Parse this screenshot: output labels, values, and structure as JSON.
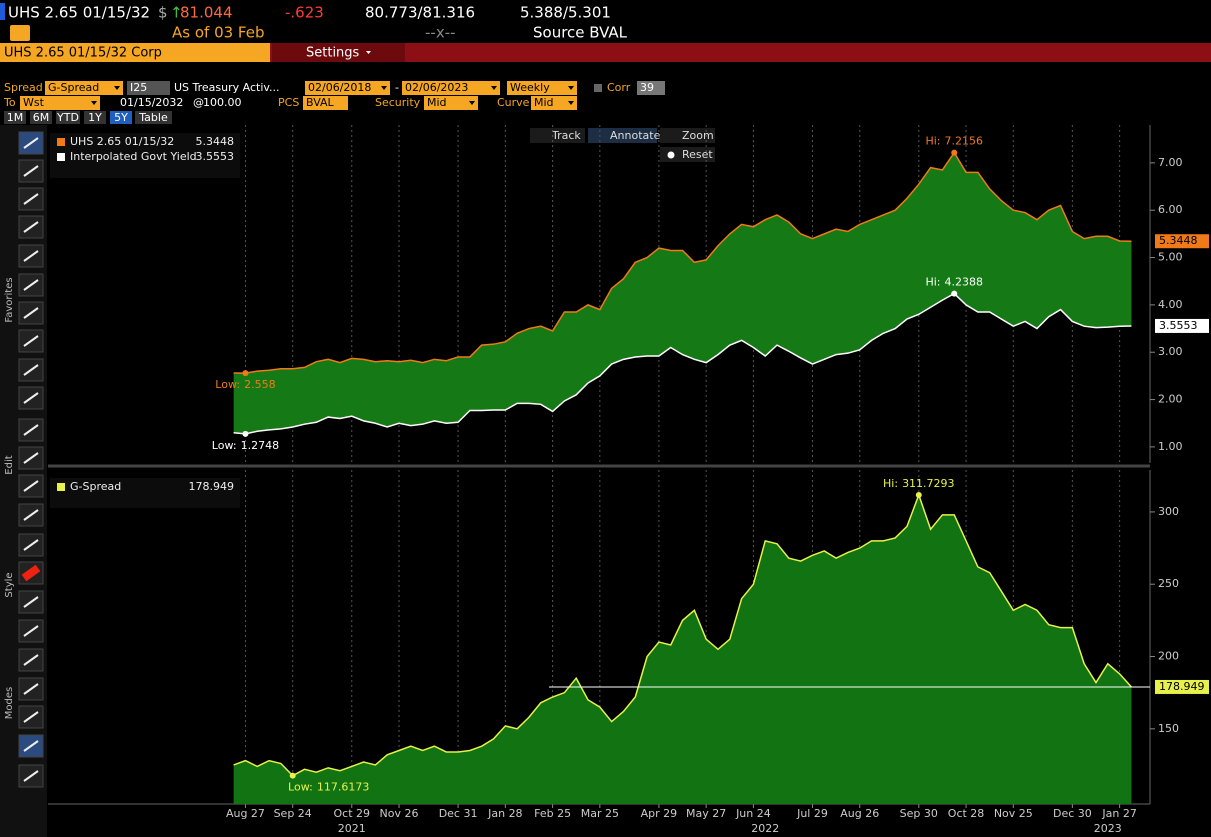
{
  "header": {
    "ticker": "UHS 2.65 01/15/32",
    "currency": "$",
    "arrow": "↑",
    "price": "81.044",
    "change": "-.623",
    "bid_ask": "80.773/81.316",
    "yields": "5.388/5.301",
    "as_of": "As of 03 Feb",
    "spacer": "--x--",
    "source": "Source BVAL",
    "security": "UHS 2.65 01/15/32 Corp",
    "settings": "Settings"
  },
  "controls": {
    "spread_label": "Spread",
    "spread": "G-Spread",
    "curve_id": "I25",
    "curve_name": "US Treasury Activ...",
    "start": "02/06/2018",
    "dash": "-",
    "end": "02/06/2023",
    "period": "Weekly",
    "corr_label": "Corr",
    "corr": "39",
    "to_label": "To",
    "to": "Wst",
    "date": "01/15/2032",
    "at": "@",
    "price": "100.00",
    "pcs_label": "PCS",
    "pcs": "BVAL",
    "security_label": "Security",
    "security": "Mid",
    "curve_label": "Curve",
    "curve": "Mid"
  },
  "buttons": [
    "1M",
    "6M",
    "YTD",
    "1Y",
    "5Y",
    "Table"
  ],
  "chart_tools": [
    "Track",
    "Annotate",
    "Zoom",
    "Reset"
  ],
  "side_labels": [
    "Favorites",
    "Edit",
    "Style",
    "Modes"
  ],
  "chart_data": {
    "type": "line",
    "legend": "top-left",
    "grid": true,
    "hi_label": "Hi:",
    "low_label": "Low:",
    "x": [
      "2021-08-20",
      "2021-08-27",
      "2021-09-03",
      "2021-09-10",
      "2021-09-17",
      "2021-09-24",
      "2021-10-01",
      "2021-10-08",
      "2021-10-15",
      "2021-10-22",
      "2021-10-29",
      "2021-11-05",
      "2021-11-12",
      "2021-11-19",
      "2021-11-26",
      "2021-12-03",
      "2021-12-10",
      "2021-12-17",
      "2021-12-24",
      "2021-12-31",
      "2022-01-07",
      "2022-01-14",
      "2022-01-21",
      "2022-01-28",
      "2022-02-04",
      "2022-02-11",
      "2022-02-18",
      "2022-02-25",
      "2022-03-04",
      "2022-03-11",
      "2022-03-18",
      "2022-03-25",
      "2022-04-01",
      "2022-04-08",
      "2022-04-15",
      "2022-04-22",
      "2022-04-29",
      "2022-05-06",
      "2022-05-13",
      "2022-05-20",
      "2022-05-27",
      "2022-06-03",
      "2022-06-10",
      "2022-06-17",
      "2022-06-24",
      "2022-07-01",
      "2022-07-08",
      "2022-07-15",
      "2022-07-22",
      "2022-07-29",
      "2022-08-05",
      "2022-08-12",
      "2022-08-19",
      "2022-08-26",
      "2022-09-02",
      "2022-09-09",
      "2022-09-16",
      "2022-09-23",
      "2022-09-30",
      "2022-10-07",
      "2022-10-14",
      "2022-10-21",
      "2022-10-28",
      "2022-11-04",
      "2022-11-11",
      "2022-11-18",
      "2022-11-25",
      "2022-12-02",
      "2022-12-09",
      "2022-12-16",
      "2022-12-23",
      "2022-12-30",
      "2023-01-06",
      "2023-01-13",
      "2023-01-20",
      "2023-01-27",
      "2023-02-03"
    ],
    "xlim": [
      "2021-05-02",
      "2023-02-14"
    ],
    "xticks": [
      {
        "value": "2021-08-27",
        "label": "Aug 27"
      },
      {
        "value": "2021-09-24",
        "label": "Sep 24"
      },
      {
        "value": "2021-10-29",
        "label": "Oct 29"
      },
      {
        "value": "2021-11-26",
        "label": "Nov 26"
      },
      {
        "value": "2021-12-31",
        "label": "Dec 31"
      },
      {
        "value": "2022-01-28",
        "label": "Jan 28"
      },
      {
        "value": "2022-02-25",
        "label": "Feb 25"
      },
      {
        "value": "2022-03-25",
        "label": "Mar 25"
      },
      {
        "value": "2022-04-29",
        "label": "Apr 29"
      },
      {
        "value": "2022-05-27",
        "label": "May 27"
      },
      {
        "value": "2022-06-24",
        "label": "Jun 24"
      },
      {
        "value": "2022-07-29",
        "label": "Jul 29"
      },
      {
        "value": "2022-08-26",
        "label": "Aug 26"
      },
      {
        "value": "2022-09-30",
        "label": "Sep 30"
      },
      {
        "value": "2022-10-28",
        "label": "Oct 28"
      },
      {
        "value": "2022-11-25",
        "label": "Nov 25"
      },
      {
        "value": "2022-12-30",
        "label": "Dec 30"
      },
      {
        "value": "2023-01-27",
        "label": "Jan 27"
      }
    ],
    "year_ticks": [
      {
        "value": "2021-10-29",
        "label": "2021"
      },
      {
        "value": "2022-07-01",
        "label": "2022"
      },
      {
        "value": "2023-01-20",
        "label": "2023"
      }
    ],
    "panels": [
      {
        "ylim": [
          0.66,
          7.8
        ],
        "yticks": [
          {
            "value": 1,
            "label": "1.00"
          },
          {
            "value": 2,
            "label": "2.00"
          },
          {
            "value": 3,
            "label": "3.00"
          },
          {
            "value": 4,
            "label": "4.00"
          },
          {
            "value": 5,
            "label": "5.00"
          },
          {
            "value": 6,
            "label": "6.00"
          },
          {
            "value": 7,
            "label": "7.00"
          }
        ],
        "fill": "band",
        "fill_color": "#157a15"
      },
      {
        "ylim": [
          98,
          329
        ],
        "yticks": [
          150,
          200,
          250,
          300
        ],
        "fill": "area",
        "fill_color": "#127312",
        "last_value_line": true
      }
    ],
    "series": [
      {
        "name": "UHS 2.65 01/15/32",
        "color": "#f07a1a",
        "panel": 0,
        "values": [
          2.56,
          2.558,
          2.6,
          2.62,
          2.65,
          2.65,
          2.68,
          2.8,
          2.85,
          2.78,
          2.87,
          2.85,
          2.8,
          2.82,
          2.8,
          2.83,
          2.78,
          2.85,
          2.82,
          2.9,
          2.9,
          3.15,
          3.17,
          3.22,
          3.4,
          3.5,
          3.55,
          3.45,
          3.85,
          3.85,
          4.0,
          3.9,
          4.35,
          4.55,
          4.9,
          5.0,
          5.2,
          5.15,
          5.15,
          4.9,
          4.95,
          5.25,
          5.5,
          5.7,
          5.65,
          5.8,
          5.9,
          5.75,
          5.5,
          5.4,
          5.5,
          5.6,
          5.55,
          5.7,
          5.8,
          5.9,
          6.0,
          6.25,
          6.55,
          6.9,
          6.85,
          7.2156,
          6.8,
          6.8,
          6.45,
          6.2,
          6.0,
          5.95,
          5.8,
          6.0,
          6.1,
          5.55,
          5.4,
          5.45,
          5.45,
          5.35,
          5.3448
        ]
      },
      {
        "name": "Interpolated Govt Yield",
        "color": "#ffffff",
        "panel": 0,
        "values": [
          1.3,
          1.2748,
          1.33,
          1.36,
          1.38,
          1.42,
          1.48,
          1.52,
          1.63,
          1.6,
          1.65,
          1.55,
          1.5,
          1.42,
          1.5,
          1.45,
          1.48,
          1.55,
          1.5,
          1.52,
          1.77,
          1.77,
          1.78,
          1.78,
          1.92,
          1.92,
          1.9,
          1.75,
          1.97,
          2.1,
          2.35,
          2.5,
          2.75,
          2.85,
          2.9,
          2.92,
          2.92,
          3.1,
          2.95,
          2.85,
          2.78,
          2.95,
          3.15,
          3.25,
          3.1,
          2.92,
          3.15,
          3.02,
          2.88,
          2.75,
          2.85,
          2.95,
          2.98,
          3.05,
          3.25,
          3.4,
          3.5,
          3.7,
          3.8,
          3.95,
          4.1,
          4.2388,
          4.0,
          3.85,
          3.85,
          3.7,
          3.55,
          3.65,
          3.5,
          3.75,
          3.9,
          3.65,
          3.55,
          3.52,
          3.53,
          3.55,
          3.5553
        ]
      },
      {
        "name": "G-Spread",
        "color": "#e8f04a",
        "panel": 1,
        "values": [
          125,
          128,
          124,
          128,
          126,
          117.6173,
          122,
          120,
          123,
          121,
          124,
          127,
          125,
          132,
          135,
          138,
          135,
          138,
          134,
          134,
          135,
          138,
          143,
          152,
          150,
          158,
          168,
          172,
          175,
          185,
          170,
          165,
          155,
          162,
          172,
          200,
          210,
          208,
          225,
          232,
          212,
          205,
          212,
          240,
          250,
          280,
          278,
          268,
          266,
          270,
          273,
          268,
          272,
          275,
          280,
          280,
          282,
          290,
          311.7293,
          288,
          298,
          298,
          280,
          262,
          258,
          245,
          232,
          236,
          232,
          222,
          220,
          220,
          195,
          182,
          195,
          188,
          178.949
        ]
      }
    ]
  }
}
